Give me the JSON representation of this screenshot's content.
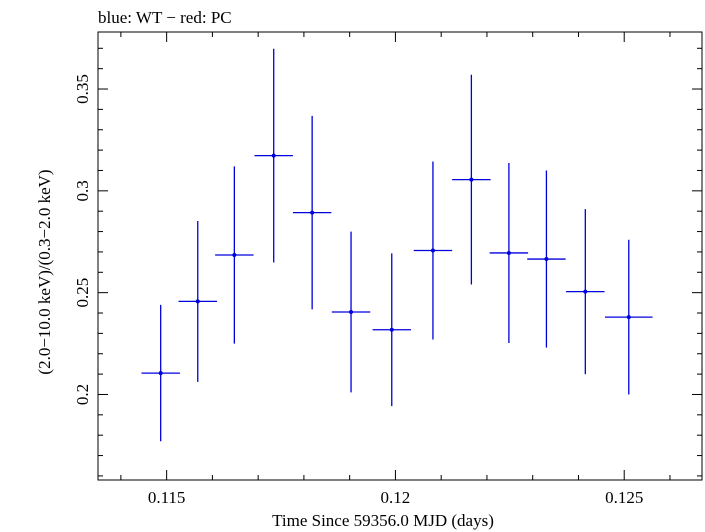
{
  "chart_data": {
    "type": "scatter",
    "title": "blue: WT − red: PC",
    "xlabel": "Time Since 59356.0 MJD (days)",
    "ylabel": "(2.0−10.0 keV)/(0.3−2.0 keV)",
    "xlim": [
      0.1135,
      0.1267
    ],
    "ylim": [
      0.158,
      0.378
    ],
    "x_ticks": [
      {
        "value": 0.115,
        "label": "0.115"
      },
      {
        "value": 0.12,
        "label": "0.12"
      },
      {
        "value": 0.125,
        "label": "0.125"
      }
    ],
    "y_ticks": [
      {
        "value": 0.2,
        "label": "0.2"
      },
      {
        "value": 0.25,
        "label": "0.25"
      },
      {
        "value": 0.3,
        "label": "0.3"
      },
      {
        "value": 0.35,
        "label": "0.35"
      }
    ],
    "grid": false,
    "series": [
      {
        "color": "#0000dd",
        "points": [
          {
            "x": 0.11487,
            "xerr": 0.00042,
            "y": 0.2105,
            "yerr": 0.0335
          },
          {
            "x": 0.11568,
            "xerr": 0.00042,
            "y": 0.2457,
            "yerr": 0.0395
          },
          {
            "x": 0.11648,
            "xerr": 0.00042,
            "y": 0.2685,
            "yerr": 0.0435
          },
          {
            "x": 0.11734,
            "xerr": 0.00042,
            "y": 0.3173,
            "yerr": 0.0525
          },
          {
            "x": 0.11818,
            "xerr": 0.00042,
            "y": 0.2893,
            "yerr": 0.0475
          },
          {
            "x": 0.11903,
            "xerr": 0.00042,
            "y": 0.2405,
            "yerr": 0.0395
          },
          {
            "x": 0.11992,
            "xerr": 0.00042,
            "y": 0.2318,
            "yerr": 0.0375
          },
          {
            "x": 0.12082,
            "xerr": 0.00042,
            "y": 0.2707,
            "yerr": 0.0437
          },
          {
            "x": 0.12166,
            "xerr": 0.00042,
            "y": 0.3055,
            "yerr": 0.0515
          },
          {
            "x": 0.12248,
            "xerr": 0.00042,
            "y": 0.2695,
            "yerr": 0.0442
          },
          {
            "x": 0.1233,
            "xerr": 0.00042,
            "y": 0.2665,
            "yerr": 0.0435
          },
          {
            "x": 0.12415,
            "xerr": 0.00042,
            "y": 0.2505,
            "yerr": 0.0405
          },
          {
            "x": 0.1251,
            "xerr": 0.00052,
            "y": 0.238,
            "yerr": 0.038
          }
        ]
      }
    ]
  }
}
